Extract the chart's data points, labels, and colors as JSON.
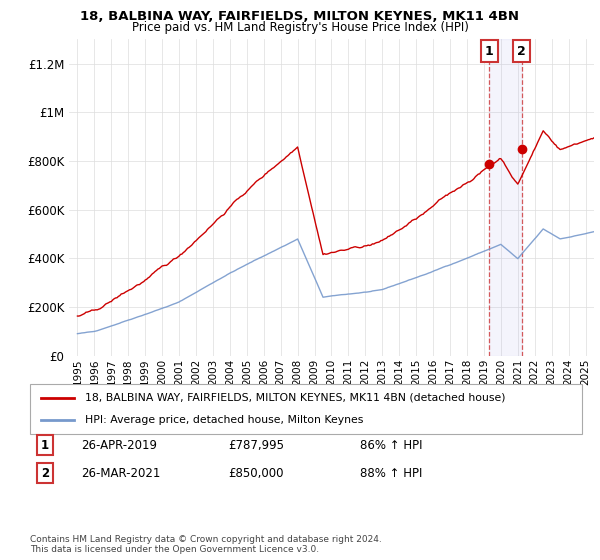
{
  "title1": "18, BALBINA WAY, FAIRFIELDS, MILTON KEYNES, MK11 4BN",
  "title2": "Price paid vs. HM Land Registry's House Price Index (HPI)",
  "ylim": [
    0,
    1300000
  ],
  "yticks": [
    0,
    200000,
    400000,
    600000,
    800000,
    1000000,
    1200000
  ],
  "ytick_labels": [
    "£0",
    "£200K",
    "£400K",
    "£600K",
    "£800K",
    "£1M",
    "£1.2M"
  ],
  "legend_line1": "18, BALBINA WAY, FAIRFIELDS, MILTON KEYNES, MK11 4BN (detached house)",
  "legend_line2": "HPI: Average price, detached house, Milton Keynes",
  "annotation1_label": "1",
  "annotation1_date": "26-APR-2019",
  "annotation1_price": "£787,995",
  "annotation1_hpi": "86% ↑ HPI",
  "annotation2_label": "2",
  "annotation2_date": "26-MAR-2021",
  "annotation2_price": "£850,000",
  "annotation2_hpi": "88% ↑ HPI",
  "footnote": "Contains HM Land Registry data © Crown copyright and database right 2024.\nThis data is licensed under the Open Government Licence v3.0.",
  "point1_year": 2019.32,
  "point1_value": 787995,
  "point2_year": 2021.23,
  "point2_value": 850000,
  "line1_color": "#cc0000",
  "line2_color": "#7799cc",
  "point_color": "#cc0000",
  "shaded_x1": 2019.32,
  "shaded_x2": 2021.23,
  "background_color": "#ffffff",
  "xmin": 1995,
  "xmax": 2025.5
}
